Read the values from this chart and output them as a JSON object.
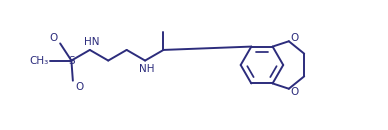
{
  "bg_color": "#ffffff",
  "line_color": "#2c2c7c",
  "line_width": 1.4,
  "font_size": 7.5,
  "fig_width": 3.88,
  "fig_height": 1.3,
  "dpi": 100,
  "xlim": [
    0,
    11
  ],
  "ylim": [
    -2.2,
    2.2
  ]
}
